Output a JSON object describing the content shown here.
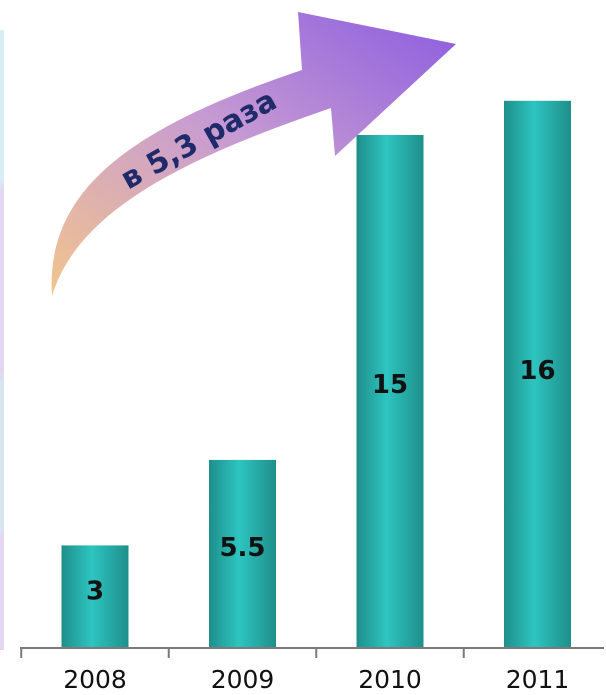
{
  "chart_data": {
    "type": "bar",
    "categories": [
      "2008",
      "2009",
      "2010",
      "2011"
    ],
    "values": [
      3,
      5.5,
      15,
      16
    ],
    "value_labels": [
      "3",
      "5.5",
      "15",
      "16"
    ],
    "title": "",
    "xlabel": "",
    "ylabel": "",
    "ylim": [
      0,
      17
    ],
    "grid": false,
    "legend": "none",
    "annotation": "в 5,3 раза"
  },
  "colors": {
    "bar": "#2ec4c0",
    "bar_edge": "#1e8f8b",
    "arrow_start": "#f2c48e",
    "arrow_mid": "#c79bd2",
    "arrow_end": "#8b5ce0",
    "axis": "#7a7a7a"
  }
}
